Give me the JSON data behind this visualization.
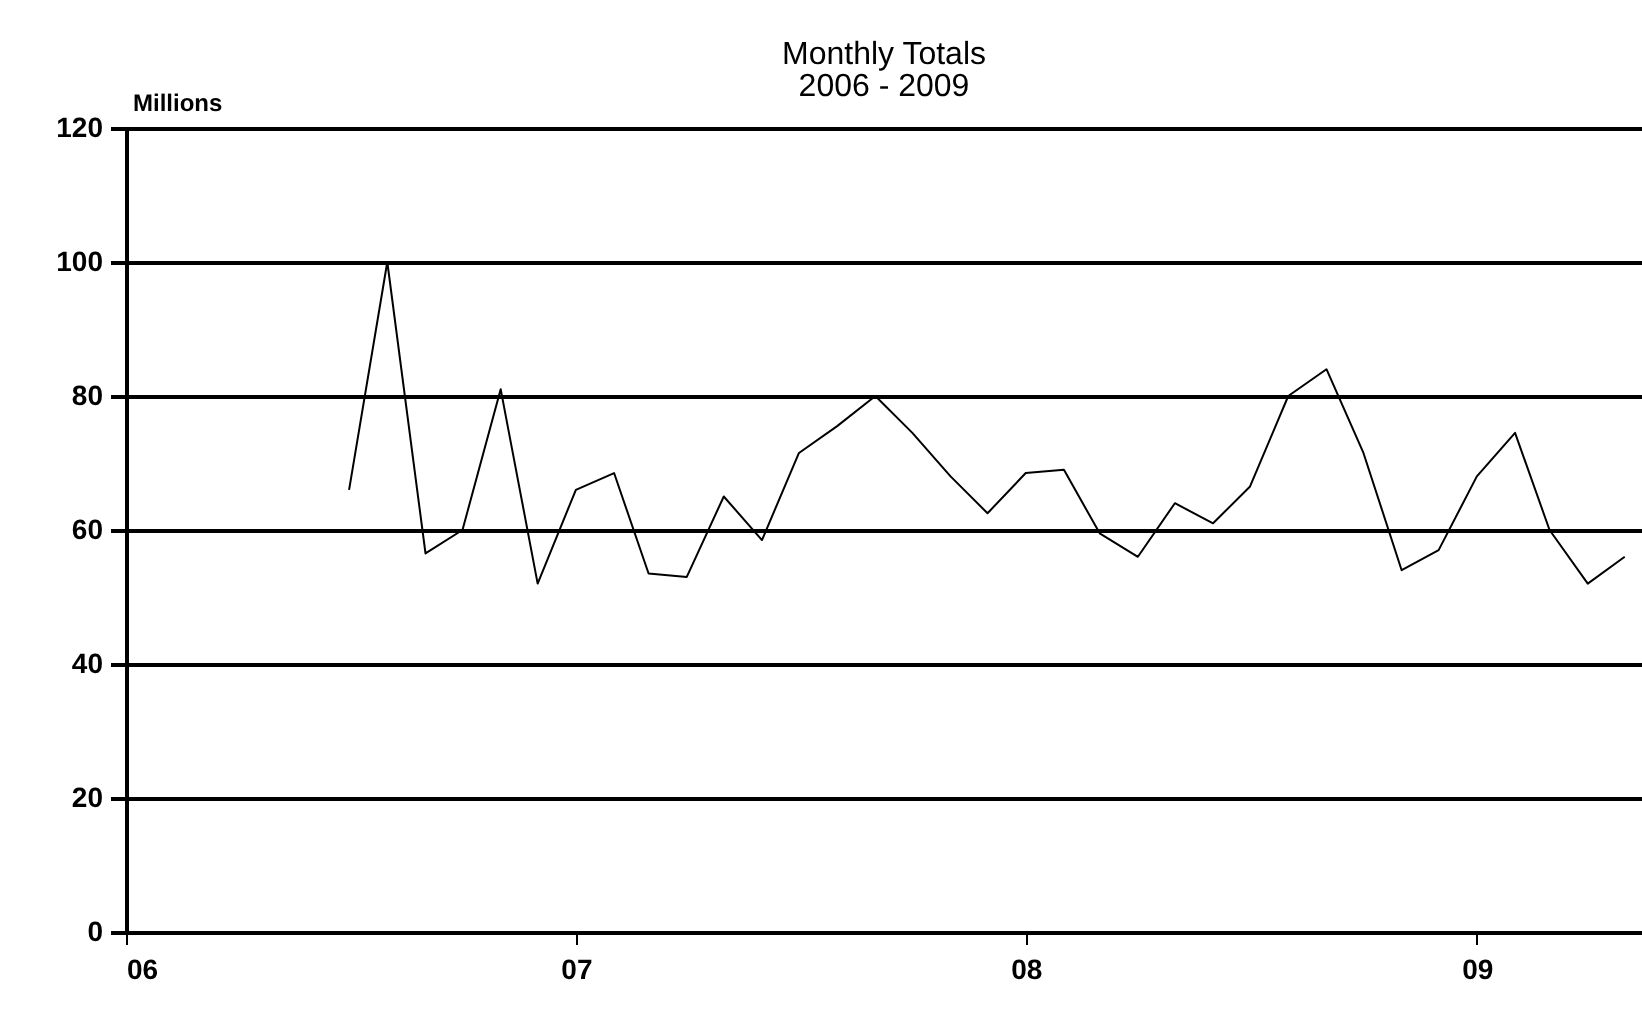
{
  "chart_data": {
    "type": "line",
    "title": "Monthly Totals",
    "subtitle": "2006 - 2009",
    "ylabel": "Millions",
    "x": [
      "2006-07",
      "2006-08",
      "2006-09",
      "2006-10",
      "2006-11",
      "2006-12",
      "2007-01",
      "2007-02",
      "2007-03",
      "2007-04",
      "2007-05",
      "2007-06",
      "2007-07",
      "2007-08",
      "2007-09",
      "2007-10",
      "2007-11",
      "2007-12",
      "2008-01",
      "2008-02",
      "2008-03",
      "2008-04",
      "2008-05",
      "2008-06",
      "2008-07",
      "2008-08",
      "2008-09",
      "2008-10",
      "2008-11",
      "2008-12",
      "2009-01",
      "2009-02",
      "2009-03",
      "2009-04",
      "2009-05"
    ],
    "series": [
      {
        "color": "#000000",
        "values": [
          66,
          100,
          56.5,
          60,
          81,
          52,
          66,
          68.5,
          53.5,
          53,
          65,
          58.5,
          71.5,
          75.5,
          80,
          74.5,
          68,
          62.5,
          68.5,
          69,
          59.5,
          56,
          64,
          61,
          66.5,
          80,
          84,
          71.5,
          54,
          57,
          68,
          74.5,
          60,
          52,
          56
        ]
      }
    ],
    "xlim": [
      "2006-01",
      "2009-05-15"
    ],
    "xticks": [
      {
        "value": "2006-01",
        "label": "06"
      },
      {
        "value": "2007-01",
        "label": "07"
      },
      {
        "value": "2008-01",
        "label": "08"
      },
      {
        "value": "2009-01",
        "label": "09"
      }
    ],
    "ylim": [
      0,
      120
    ],
    "yticks": [
      0,
      20,
      40,
      60,
      80,
      100,
      120
    ],
    "grid": "y",
    "marker": "none",
    "line_style": "solid"
  }
}
